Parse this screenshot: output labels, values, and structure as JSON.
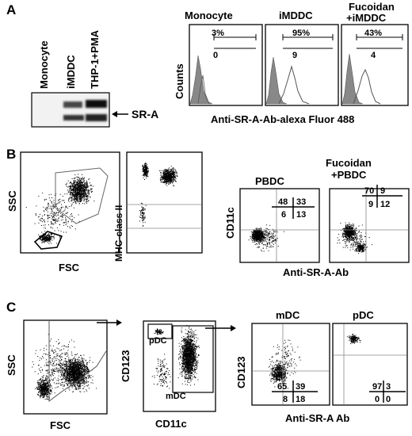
{
  "panels": {
    "A": {
      "letter": "A",
      "blot": {
        "lanes": [
          "Monocyte",
          "iMDDC",
          "THP-1+PMA"
        ],
        "band_label": "SR-A"
      },
      "histograms": [
        {
          "title": "Monocyte",
          "top_pct": "3%",
          "bottom_val": "0"
        },
        {
          "title": "iMDDC",
          "top_pct": "95%",
          "bottom_val": "9"
        },
        {
          "title_line1": "Fucoidan",
          "title_line2": "+iMDDC",
          "top_pct": "43%",
          "bottom_val": "4"
        }
      ],
      "ylabel": "Counts",
      "xlabel": "Anti-SR-A-Ab-alexa Fluor 488"
    },
    "B": {
      "letter": "B",
      "scatter1": {
        "ylabel": "SSC",
        "xlabel": "FSC"
      },
      "scatter2": {
        "ylabel": "MHC-class II"
      },
      "quad_plots": [
        {
          "title": "PBDC",
          "q_tl": "48",
          "q_tr": "33",
          "q_bl": "6",
          "q_br": "13"
        },
        {
          "title_line1": "Fucoidan",
          "title_line2": "+PBDC",
          "q_tl": "70",
          "q_tr": "9",
          "q_bl": "9",
          "q_br": "12"
        }
      ],
      "ylabel": "CD11c",
      "xlabel": "Anti-SR-A-Ab"
    },
    "C": {
      "letter": "C",
      "scatter1": {
        "ylabel": "SSC",
        "xlabel": "FSC"
      },
      "scatter2": {
        "ylabel": "CD123",
        "xlabel": "CD11c",
        "gate_top": "pDC",
        "gate_bottom": "mDC"
      },
      "quad_plots": [
        {
          "title": "mDC",
          "q_tl": "65",
          "q_tr": "39",
          "q_bl": "8",
          "q_br": "18"
        },
        {
          "title": "pDC",
          "q_tl": "97",
          "q_tr": "3",
          "q_bl": "0",
          "q_br": "0"
        }
      ],
      "ylabel": "CD123",
      "xlabel": "Anti-SR-A Ab"
    }
  }
}
